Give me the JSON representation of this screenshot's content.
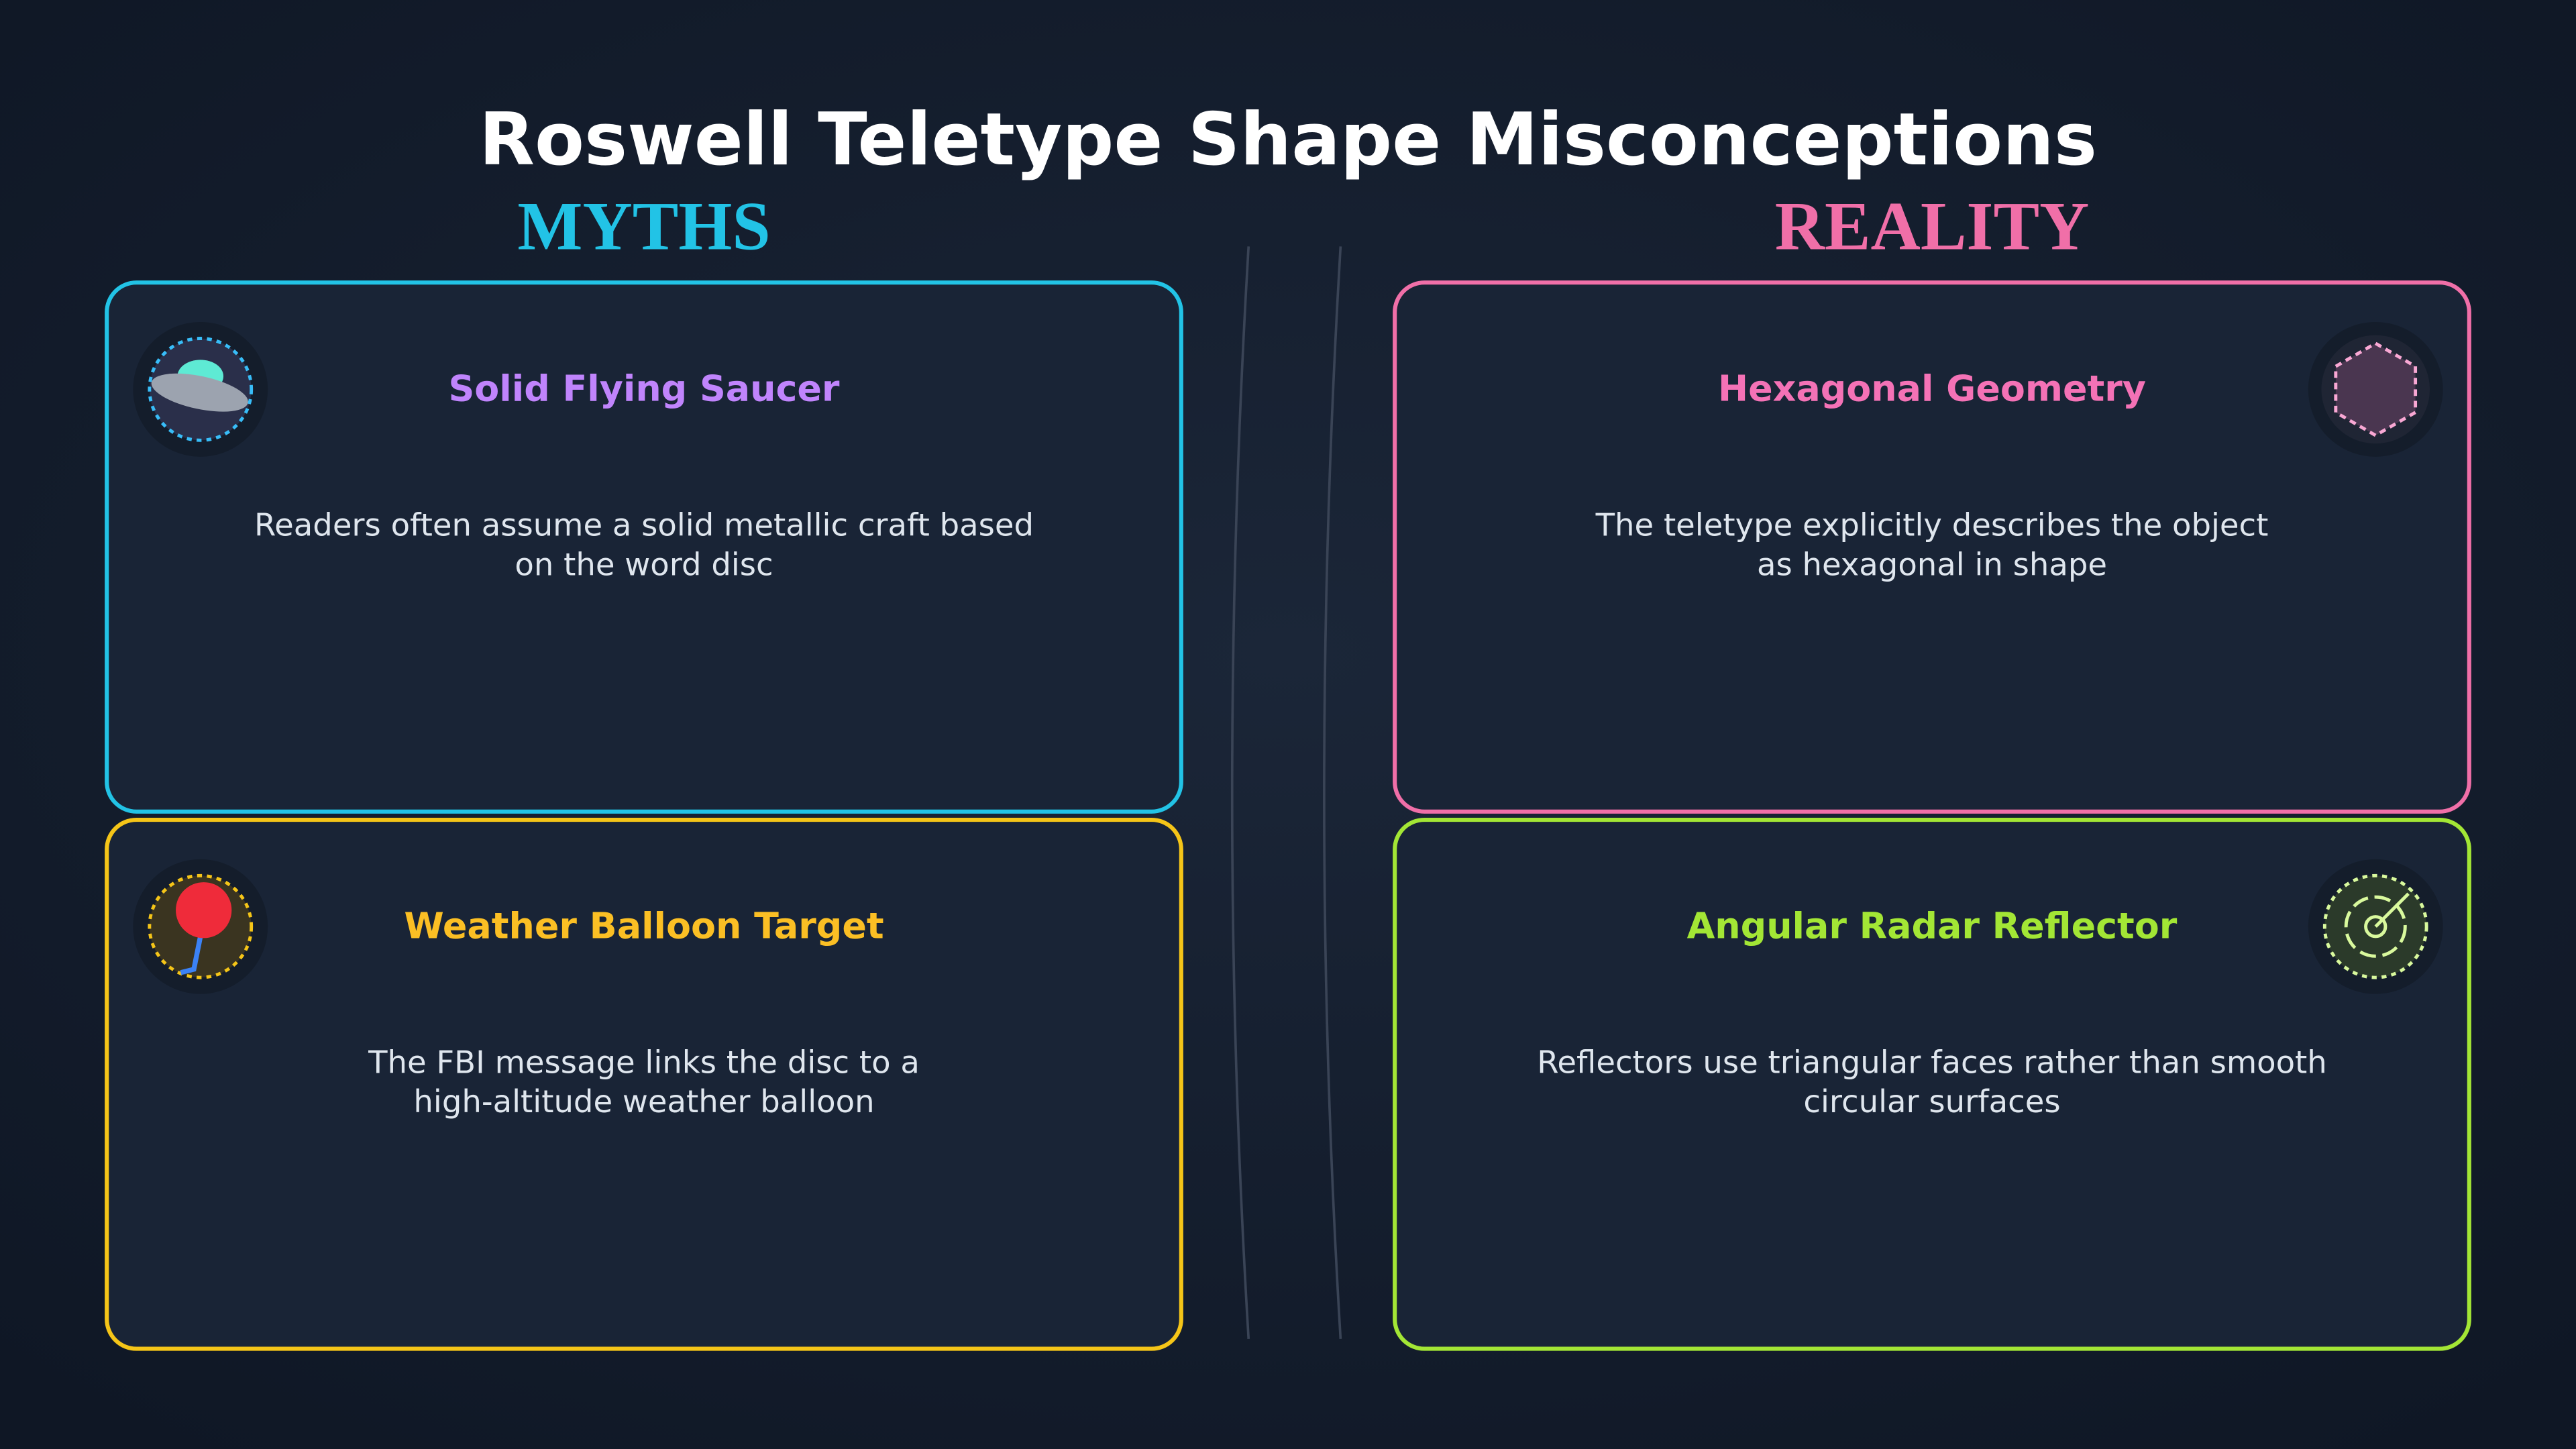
{
  "title": "Roswell Teletype Shape Misconceptions",
  "columns": [
    {
      "heading": "MYTHS",
      "cards": [
        {
          "title": "Solid Flying Saucer",
          "lines": [
            "Readers often assume a solid metallic craft based",
            "on the word disc"
          ]
        },
        {
          "title": "Weather Balloon Target",
          "lines": [
            "The FBI message links the disc to a",
            "high-altitude weather balloon"
          ]
        }
      ]
    },
    {
      "heading": "REALITY",
      "cards": [
        {
          "title": "Hexagonal Geometry",
          "lines": [
            "The teletype explicitly describes the object",
            "as hexagonal in shape"
          ]
        },
        {
          "title": "Angular Radar Reflector",
          "lines": [
            "Reflectors use triangular faces rather than smooth",
            "circular surfaces"
          ]
        }
      ]
    }
  ]
}
